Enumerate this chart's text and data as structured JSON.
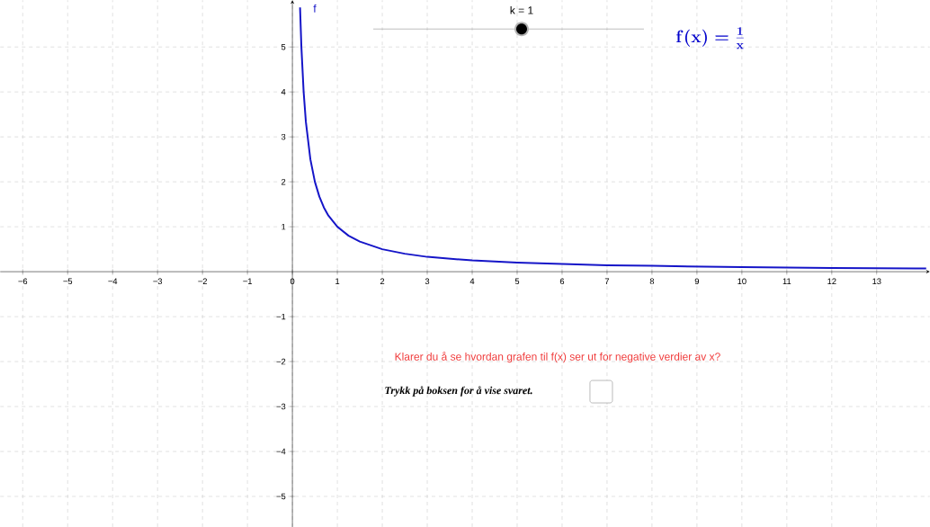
{
  "chart_data": {
    "type": "line",
    "title": "\\mathbf{f(x)} = \\frac{\\mathbf{1}}{\\mathbf{x}}",
    "annotations": [
      "k = 1",
      "Klarer du å se hvordan grafen til f(x) ser ut for negative verdier av x?",
      "Trykk på boksen for å vise svaret."
    ],
    "x": [
      0.17,
      0.2,
      0.25,
      0.3,
      0.4,
      0.5,
      0.6,
      0.7,
      0.8,
      1,
      1.25,
      1.5,
      2,
      2.5,
      3,
      4,
      5,
      6,
      7,
      8,
      10,
      12,
      14.1
    ],
    "series": [
      {
        "name": "f",
        "color": "#1515c8",
        "values": [
          5.88,
          5,
          4,
          3.33,
          2.5,
          2,
          1.67,
          1.43,
          1.25,
          1,
          0.8,
          0.67,
          0.5,
          0.4,
          0.33,
          0.25,
          0.2,
          0.17,
          0.14,
          0.13,
          0.1,
          0.08,
          0.07
        ]
      }
    ],
    "xlim": [
      -6.5,
      14.18
    ],
    "ylim": [
      -5.68,
      6.04
    ],
    "xticks": [
      {
        "value": -6,
        "label": "−6"
      },
      {
        "value": -5,
        "label": "−5"
      },
      {
        "value": -4,
        "label": "−4"
      },
      {
        "value": -3,
        "label": "−3"
      },
      {
        "value": -2,
        "label": "−2"
      },
      {
        "value": -1,
        "label": "−1"
      },
      0,
      1,
      2,
      3,
      4,
      5,
      6,
      7,
      8,
      9,
      10,
      11,
      12,
      13
    ],
    "yticks": [
      {
        "value": -5,
        "label": "−5"
      },
      {
        "value": -4,
        "label": "−4"
      },
      {
        "value": -3,
        "label": "−3"
      },
      {
        "value": -2,
        "label": "−2"
      },
      {
        "value": -1,
        "label": "−1"
      },
      1,
      2,
      3,
      4,
      5
    ],
    "grid": true,
    "marker": "none",
    "line_style": "solid"
  }
}
